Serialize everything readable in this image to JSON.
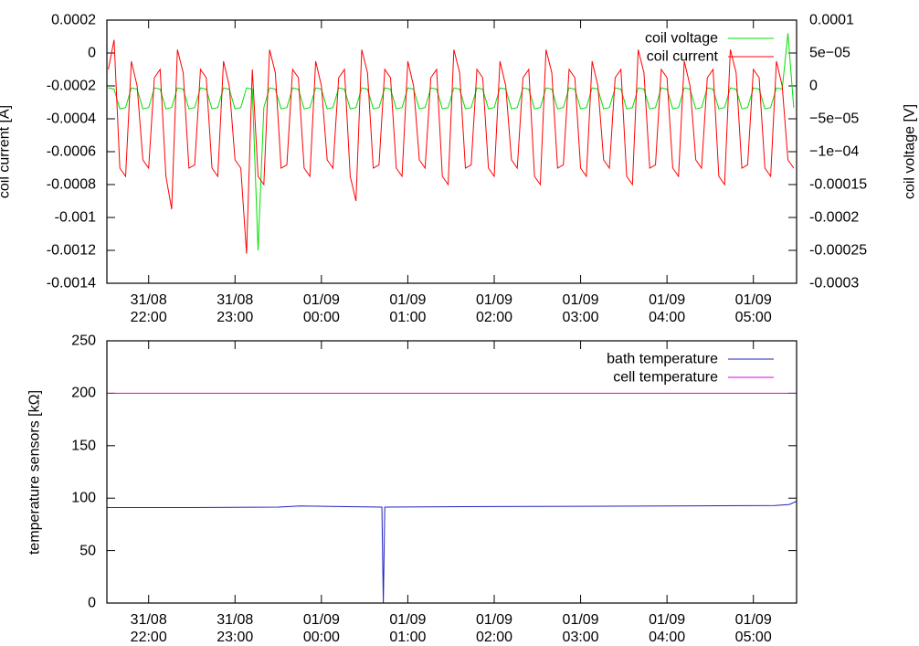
{
  "chart_data": [
    {
      "type": "line",
      "ylabel": "coil current [A]",
      "y2label": "coil voltage [V]",
      "legend": "top right",
      "xlim": [
        "31/08 21:31",
        "01/09 05:30"
      ],
      "xticks": [
        {
          "value": "31/08 22:00",
          "label": "31/08\n22:00"
        },
        {
          "value": "31/08 23:00",
          "label": "31/08\n23:00"
        },
        {
          "value": "01/09 00:00",
          "label": "01/09\n00:00"
        },
        {
          "value": "01/09 01:00",
          "label": "01/09\n01:00"
        },
        {
          "value": "01/09 02:00",
          "label": "01/09\n02:00"
        },
        {
          "value": "01/09 03:00",
          "label": "01/09\n03:00"
        },
        {
          "value": "01/09 04:00",
          "label": "01/09\n04:00"
        },
        {
          "value": "01/09 05:00",
          "label": "01/09\n05:00"
        }
      ],
      "ylim": [
        -0.0014,
        0.0002
      ],
      "yticks": [
        -0.0014,
        -0.0012,
        -0.001,
        -0.0008,
        -0.0006,
        -0.0004,
        -0.0002,
        0,
        0.0002
      ],
      "y2lim": [
        -0.0003,
        0.0001
      ],
      "y2ticks": [
        -0.0003,
        -0.00025,
        -0.0002,
        -0.00015,
        {
          "value": -0.0001,
          "label": "−1e−04"
        },
        {
          "value": -5e-05,
          "label": "−5e−05"
        },
        0,
        {
          "value": 5e-05,
          "label": "5e−05"
        },
        0.0001
      ],
      "x": [
        "31/08 21:32",
        "31/08 21:36",
        "31/08 21:40",
        "31/08 21:44",
        "31/08 21:48",
        "31/08 21:52",
        "31/08 21:56",
        "31/08 22:00",
        "31/08 22:04",
        "31/08 22:08",
        "31/08 22:12",
        "31/08 22:16",
        "31/08 22:20",
        "31/08 22:24",
        "31/08 22:28",
        "31/08 22:32",
        "31/08 22:36",
        "31/08 22:40",
        "31/08 22:44",
        "31/08 22:48",
        "31/08 22:52",
        "31/08 22:56",
        "31/08 23:00",
        "31/08 23:04",
        "31/08 23:08",
        "31/08 23:12",
        "31/08 23:16",
        "31/08 23:20",
        "31/08 23:24",
        "31/08 23:28",
        "31/08 23:32",
        "31/08 23:36",
        "31/08 23:40",
        "31/08 23:44",
        "31/08 23:48",
        "31/08 23:52",
        "31/08 23:56",
        "01/09 00:00",
        "01/09 00:04",
        "01/09 00:08",
        "01/09 00:12",
        "01/09 00:16",
        "01/09 00:20",
        "01/09 00:24",
        "01/09 00:28",
        "01/09 00:32",
        "01/09 00:36",
        "01/09 00:40",
        "01/09 00:44",
        "01/09 00:48",
        "01/09 00:52",
        "01/09 00:56",
        "01/09 01:00",
        "01/09 01:04",
        "01/09 01:08",
        "01/09 01:12",
        "01/09 01:16",
        "01/09 01:20",
        "01/09 01:24",
        "01/09 01:28",
        "01/09 01:32",
        "01/09 01:36",
        "01/09 01:40",
        "01/09 01:44",
        "01/09 01:48",
        "01/09 01:52",
        "01/09 01:56",
        "01/09 02:00",
        "01/09 02:04",
        "01/09 02:08",
        "01/09 02:12",
        "01/09 02:16",
        "01/09 02:20",
        "01/09 02:24",
        "01/09 02:28",
        "01/09 02:32",
        "01/09 02:36",
        "01/09 02:40",
        "01/09 02:44",
        "01/09 02:48",
        "01/09 02:52",
        "01/09 02:56",
        "01/09 03:00",
        "01/09 03:04",
        "01/09 03:08",
        "01/09 03:12",
        "01/09 03:16",
        "01/09 03:20",
        "01/09 03:24",
        "01/09 03:28",
        "01/09 03:32",
        "01/09 03:36",
        "01/09 03:40",
        "01/09 03:44",
        "01/09 03:48",
        "01/09 03:52",
        "01/09 03:56",
        "01/09 04:00",
        "01/09 04:04",
        "01/09 04:08",
        "01/09 04:12",
        "01/09 04:16",
        "01/09 04:20",
        "01/09 04:24",
        "01/09 04:28",
        "01/09 04:32",
        "01/09 04:36",
        "01/09 04:40",
        "01/09 04:44",
        "01/09 04:48",
        "01/09 04:52",
        "01/09 04:56",
        "01/09 05:00",
        "01/09 05:04",
        "01/09 05:08",
        "01/09 05:12",
        "01/09 05:16",
        "01/09 05:20",
        "01/09 05:24",
        "01/09 05:28"
      ],
      "series": [
        {
          "name": "coil voltage",
          "color": "#00e000",
          "axis": "y2",
          "values": [
            -3e-06,
            -5e-06,
            -3.5e-05,
            -3.3e-05,
            -3e-06,
            -5e-06,
            -3.5e-05,
            -3.3e-05,
            -3e-06,
            -5e-06,
            -3.5e-05,
            -3.3e-05,
            -3e-06,
            -5e-06,
            -3.5e-05,
            -3.3e-05,
            -3e-06,
            -5e-06,
            -3.5e-05,
            -3.3e-05,
            -3e-06,
            -5e-06,
            -3.5e-05,
            -3.3e-05,
            -3e-06,
            -5e-06,
            -0.00025,
            -3.3e-05,
            -3e-06,
            -5e-06,
            -3.5e-05,
            -3.3e-05,
            -3e-06,
            -5e-06,
            -3.5e-05,
            -3.3e-05,
            -3e-06,
            -5e-06,
            -3.5e-05,
            -3.3e-05,
            -3e-06,
            -5e-06,
            -3.5e-05,
            -3.3e-05,
            -3e-06,
            -5e-06,
            -3.5e-05,
            -3.3e-05,
            -3e-06,
            -5e-06,
            -3.5e-05,
            -3.3e-05,
            -3e-06,
            -5e-06,
            -3.5e-05,
            -3.3e-05,
            -3e-06,
            -5e-06,
            -3.5e-05,
            -3.3e-05,
            -3e-06,
            -5e-06,
            -3.5e-05,
            -3.3e-05,
            -3e-06,
            -5e-06,
            -3.5e-05,
            -3.3e-05,
            -3e-06,
            -5e-06,
            -3.5e-05,
            -3.3e-05,
            -3e-06,
            -5e-06,
            -3.5e-05,
            -3.3e-05,
            -3e-06,
            -5e-06,
            -3.5e-05,
            -3.3e-05,
            -3e-06,
            -5e-06,
            -3.5e-05,
            -3.3e-05,
            -3e-06,
            -5e-06,
            -3.5e-05,
            -3.3e-05,
            -3e-06,
            -5e-06,
            -3.5e-05,
            -3.3e-05,
            -3e-06,
            -5e-06,
            -3.5e-05,
            -3.3e-05,
            -3e-06,
            -5e-06,
            -3.5e-05,
            -3.3e-05,
            -3e-06,
            -5e-06,
            -3.5e-05,
            -3.3e-05,
            -3e-06,
            -5e-06,
            -3.5e-05,
            -3.3e-05,
            -3e-06,
            -5e-06,
            -3.5e-05,
            -3.3e-05,
            -3e-06,
            -5e-06,
            -3.5e-05,
            -3.3e-05,
            -3e-06,
            -5e-06,
            8e-05,
            -3.3e-05
          ]
        },
        {
          "name": "coil current",
          "color": "#ff0000",
          "values": [
            -0.0001,
            8e-05,
            -0.0007,
            -0.00075,
            -5e-05,
            -0.0002,
            -0.00065,
            -0.0007,
            -0.00015,
            -0.0001,
            -0.00075,
            -0.00095,
            2e-05,
            -0.00012,
            -0.0007,
            -0.00068,
            -0.0001,
            -0.00015,
            -0.0007,
            -0.00075,
            -5e-05,
            -0.0002,
            -0.00065,
            -0.0007,
            -0.00122,
            -0.0001,
            -0.00075,
            -0.0008,
            2e-05,
            -0.00012,
            -0.0007,
            -0.00068,
            -0.0001,
            -0.00015,
            -0.0007,
            -0.00075,
            -5e-05,
            -0.0002,
            -0.00065,
            -0.0007,
            -0.00015,
            -0.0001,
            -0.00075,
            -0.0009,
            2e-05,
            -0.00012,
            -0.0007,
            -0.00068,
            -0.0001,
            -0.00015,
            -0.0007,
            -0.00075,
            -5e-05,
            -0.0002,
            -0.00065,
            -0.0007,
            -0.00015,
            -0.0001,
            -0.00075,
            -0.0008,
            2e-05,
            -0.00012,
            -0.0007,
            -0.00068,
            -0.0001,
            -0.00015,
            -0.0007,
            -0.00075,
            -5e-05,
            -0.0002,
            -0.00065,
            -0.0007,
            -0.00015,
            -0.0001,
            -0.00075,
            -0.0008,
            2e-05,
            -0.00012,
            -0.0007,
            -0.00068,
            -0.0001,
            -0.00015,
            -0.0007,
            -0.00075,
            -5e-05,
            -0.0002,
            -0.00065,
            -0.0007,
            -0.00015,
            -0.0001,
            -0.00075,
            -0.0008,
            2e-05,
            -0.00012,
            -0.0007,
            -0.00068,
            -0.0001,
            -0.00015,
            -0.0007,
            -0.00075,
            -5e-05,
            -0.0002,
            -0.00065,
            -0.0007,
            -0.00015,
            -0.0001,
            -0.00075,
            -0.0008,
            2e-05,
            -0.00012,
            -0.0007,
            -0.00068,
            -0.0001,
            -0.00015,
            -0.0007,
            -0.00075,
            -5e-05,
            -0.0002,
            -0.00065,
            -0.0007
          ]
        }
      ]
    },
    {
      "type": "line",
      "ylabel": "temperature sensors [kΩ]",
      "legend": "top right",
      "xlim": [
        "31/08 21:31",
        "01/09 05:30"
      ],
      "xticks": [
        {
          "value": "31/08 22:00",
          "label": "31/08\n22:00"
        },
        {
          "value": "31/08 23:00",
          "label": "31/08\n23:00"
        },
        {
          "value": "01/09 00:00",
          "label": "01/09\n00:00"
        },
        {
          "value": "01/09 01:00",
          "label": "01/09\n01:00"
        },
        {
          "value": "01/09 02:00",
          "label": "01/09\n02:00"
        },
        {
          "value": "01/09 03:00",
          "label": "01/09\n03:00"
        },
        {
          "value": "01/09 04:00",
          "label": "01/09\n04:00"
        },
        {
          "value": "01/09 05:00",
          "label": "01/09\n05:00"
        }
      ],
      "ylim": [
        0,
        250
      ],
      "yticks": [
        0,
        50,
        100,
        150,
        200,
        250
      ],
      "x": [
        "31/08 21:31",
        "31/08 22:30",
        "31/08 23:30",
        "31/08 23:45",
        "01/09 00:42",
        "01/09 00:43",
        "01/09 00:44",
        "01/09 02:00",
        "01/09 04:00",
        "01/09 05:15",
        "01/09 05:25",
        "01/09 05:30"
      ],
      "series": [
        {
          "name": "bath temperature",
          "color": "#2020c0",
          "values": [
            91,
            91,
            91.5,
            92.5,
            91.5,
            0,
            91.5,
            92,
            92.5,
            93,
            94,
            97
          ]
        },
        {
          "name": "cell temperature",
          "color": "#e000e0",
          "values": [
            200,
            200,
            200,
            200,
            200,
            200,
            200,
            200,
            200,
            200,
            200,
            200
          ]
        }
      ]
    }
  ]
}
